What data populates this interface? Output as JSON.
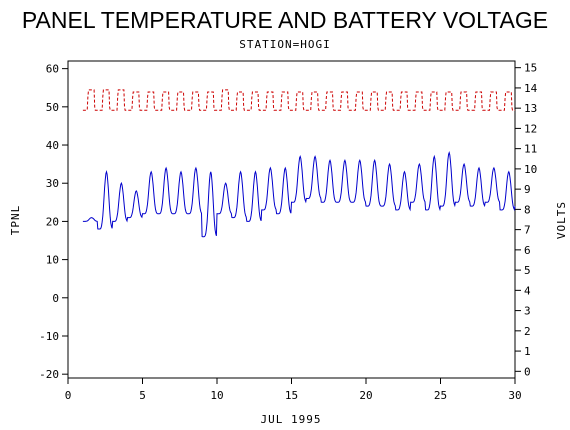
{
  "chart_data": {
    "type": "line",
    "title": "PANEL TEMPERATURE AND BATTERY VOLTAGE",
    "subtitle": "STATION=HOGI",
    "xlabel": "JUL 1995",
    "ylabel_left": "TPNL",
    "ylabel_right": "VOLTS",
    "xlim": [
      0,
      30
    ],
    "ylim_left": [
      -21,
      62
    ],
    "ylim_right": [
      -0.33,
      15.33
    ],
    "x_ticks": [
      0,
      5,
      10,
      15,
      20,
      25,
      30
    ],
    "y_left_ticks": [
      -20,
      -10,
      0,
      10,
      20,
      30,
      40,
      50,
      60
    ],
    "y_right_ticks": [
      0,
      1,
      2,
      3,
      4,
      5,
      6,
      7,
      8,
      9,
      10,
      11,
      12,
      13,
      14,
      15
    ],
    "grid": false,
    "series": [
      {
        "axis": "left",
        "color": "#0000cc",
        "line_style": "solid",
        "daily_min": [
          20,
          18,
          20,
          21,
          22,
          22,
          22,
          22,
          16,
          22,
          21,
          20,
          23,
          22,
          25,
          26,
          25,
          25,
          25,
          24,
          24,
          23,
          25,
          23,
          24,
          25,
          24,
          25,
          23,
          24
        ],
        "daily_max": [
          21,
          33,
          30,
          28,
          33,
          34,
          33,
          34,
          33,
          30,
          33,
          33,
          34,
          34,
          37,
          37,
          36,
          36,
          36,
          36,
          35,
          33,
          35,
          37,
          38,
          35,
          34,
          34,
          33,
          25
        ]
      },
      {
        "axis": "right",
        "color": "#cc0000",
        "line_style": "dashed",
        "daily_min": [
          12.9,
          12.9,
          12.9,
          12.9,
          12.9,
          12.9,
          12.9,
          12.9,
          12.9,
          12.9,
          12.9,
          12.9,
          12.9,
          12.9,
          12.9,
          12.9,
          12.9,
          12.9,
          12.9,
          12.9,
          12.9,
          12.9,
          12.9,
          12.9,
          12.9,
          12.9,
          12.9,
          12.9,
          12.9,
          12.9
        ],
        "daily_max": [
          13.9,
          13.9,
          13.9,
          13.8,
          13.8,
          13.8,
          13.8,
          13.8,
          13.8,
          13.9,
          13.8,
          13.8,
          13.8,
          13.8,
          13.8,
          13.8,
          13.8,
          13.8,
          13.8,
          13.8,
          13.8,
          13.8,
          13.8,
          13.8,
          13.8,
          13.8,
          13.8,
          13.8,
          13.8,
          13.8
        ]
      }
    ]
  }
}
